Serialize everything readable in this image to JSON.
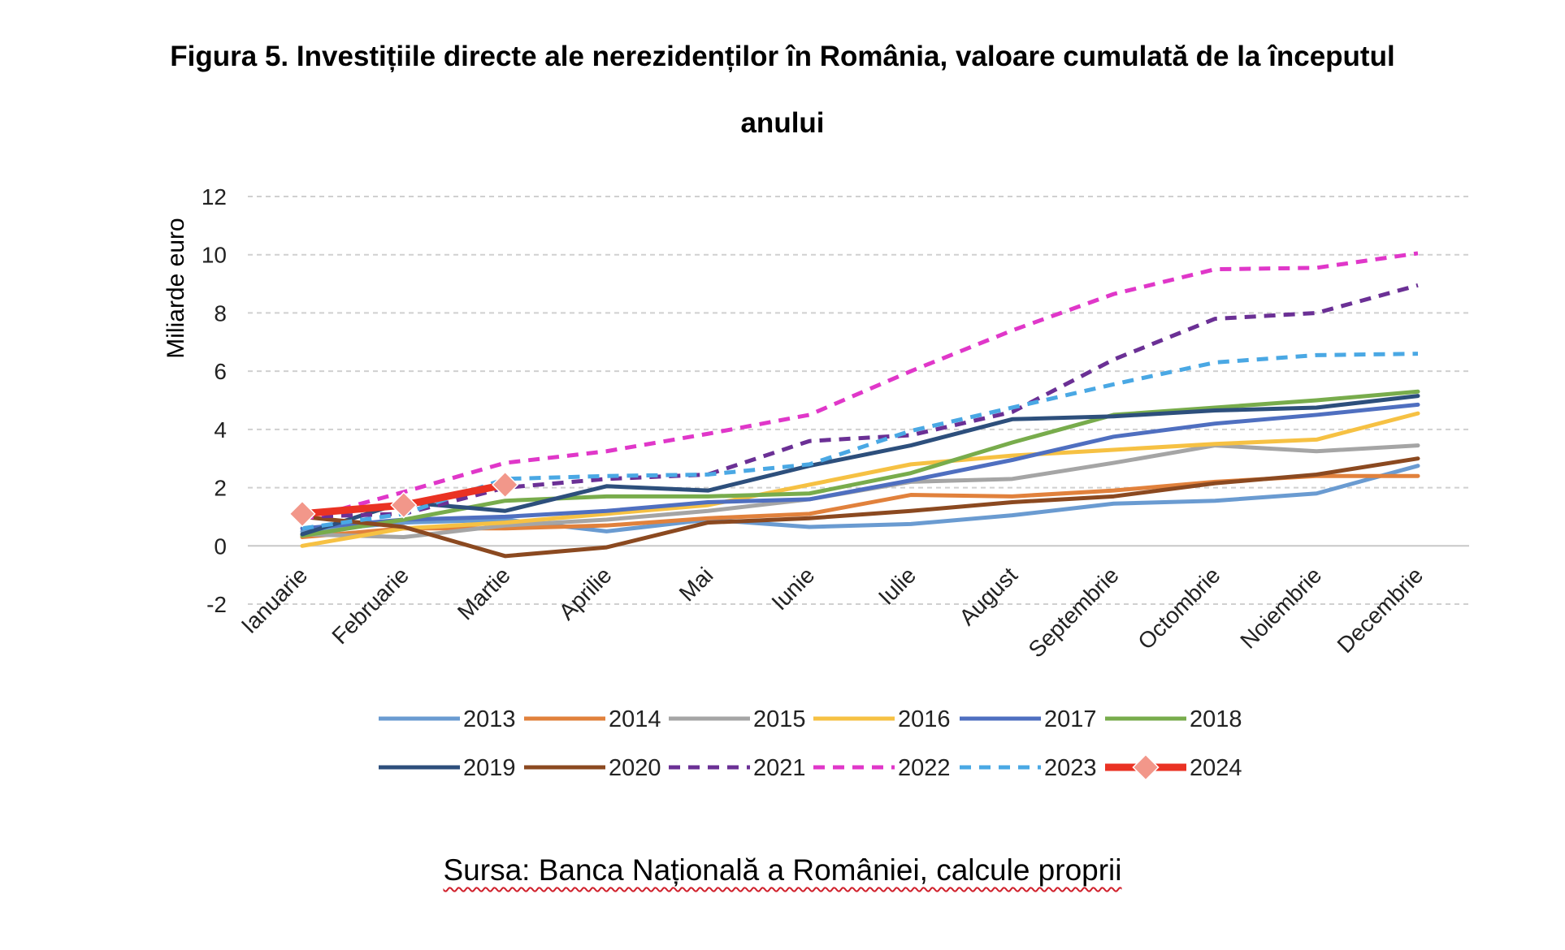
{
  "figure": {
    "title_line1": "Figura 5. Investițiile directe ale nerezidenților în România, valoare cumulată de la începutul",
    "title_line2": "anului",
    "source": "Sursa: Banca Națională a României, calcule proprii"
  },
  "chart_data": {
    "type": "line",
    "title": "Figura 5. Investițiile directe ale nerezidenților în România, valoare cumulată de la începutul anului",
    "xlabel": "",
    "ylabel": "Miliarde euro",
    "ylim": [
      -2,
      12
    ],
    "yticks": [
      -2,
      0,
      2,
      4,
      6,
      8,
      10,
      12
    ],
    "grid": true,
    "legend_position": "bottom",
    "categories": [
      "Ianuarie",
      "Februarie",
      "Martie",
      "Aprilie",
      "Mai",
      "Iunie",
      "Iulie",
      "August",
      "Septembrie",
      "Octombrie",
      "Noiembrie",
      "Decembrie"
    ],
    "series": [
      {
        "name": "2013",
        "color": "#6a9bd1",
        "dash": false,
        "values": [
          0.5,
          0.8,
          0.9,
          0.5,
          0.9,
          0.65,
          0.75,
          1.05,
          1.45,
          1.55,
          1.8,
          2.75
        ]
      },
      {
        "name": "2014",
        "color": "#e1813c",
        "dash": false,
        "values": [
          0.3,
          0.6,
          0.6,
          0.7,
          0.95,
          1.1,
          1.75,
          1.7,
          1.9,
          2.2,
          2.4,
          2.4
        ]
      },
      {
        "name": "2015",
        "color": "#a5a5a5",
        "dash": false,
        "values": [
          0.4,
          0.3,
          0.7,
          0.9,
          1.2,
          1.6,
          2.2,
          2.3,
          2.85,
          3.45,
          3.25,
          3.45
        ]
      },
      {
        "name": "2016",
        "color": "#f6c143",
        "dash": false,
        "values": [
          0.0,
          0.6,
          0.8,
          1.1,
          1.4,
          2.1,
          2.8,
          3.1,
          3.3,
          3.5,
          3.65,
          4.55
        ]
      },
      {
        "name": "2017",
        "color": "#4f6fc0",
        "dash": false,
        "values": [
          0.6,
          0.9,
          1.0,
          1.2,
          1.5,
          1.6,
          2.25,
          2.95,
          3.75,
          4.2,
          4.5,
          4.85
        ]
      },
      {
        "name": "2018",
        "color": "#78ac4c",
        "dash": false,
        "values": [
          0.35,
          0.9,
          1.55,
          1.7,
          1.7,
          1.8,
          2.5,
          3.55,
          4.5,
          4.75,
          5.0,
          5.3
        ]
      },
      {
        "name": "2019",
        "color": "#2d4f7c",
        "dash": false,
        "values": [
          0.4,
          1.5,
          1.2,
          2.05,
          1.9,
          2.75,
          3.45,
          4.35,
          4.45,
          4.65,
          4.75,
          5.15
        ]
      },
      {
        "name": "2020",
        "color": "#8b4920",
        "dash": false,
        "values": [
          1.0,
          0.65,
          -0.35,
          -0.05,
          0.8,
          0.95,
          1.2,
          1.5,
          1.7,
          2.15,
          2.45,
          3.0
        ]
      },
      {
        "name": "2021",
        "color": "#6b3095",
        "dash": true,
        "values": [
          1.0,
          1.1,
          2.0,
          2.3,
          2.45,
          3.6,
          3.8,
          4.6,
          6.4,
          7.8,
          8.0,
          8.95
        ]
      },
      {
        "name": "2022",
        "color": "#e037c9",
        "dash": true,
        "values": [
          0.9,
          1.85,
          2.85,
          3.25,
          3.85,
          4.5,
          6.0,
          7.4,
          8.65,
          9.5,
          9.55,
          10.05
        ]
      },
      {
        "name": "2023",
        "color": "#4aa8e4",
        "dash": true,
        "values": [
          0.6,
          1.1,
          2.3,
          2.4,
          2.45,
          2.8,
          3.95,
          4.75,
          5.55,
          6.3,
          6.55,
          6.6
        ]
      },
      {
        "name": "2024",
        "color": "#ea3223",
        "dash": false,
        "marker": true,
        "markerColor": "#f2978a",
        "values": [
          1.1,
          1.4,
          2.1,
          null,
          null,
          null,
          null,
          null,
          null,
          null,
          null,
          null
        ]
      }
    ]
  }
}
